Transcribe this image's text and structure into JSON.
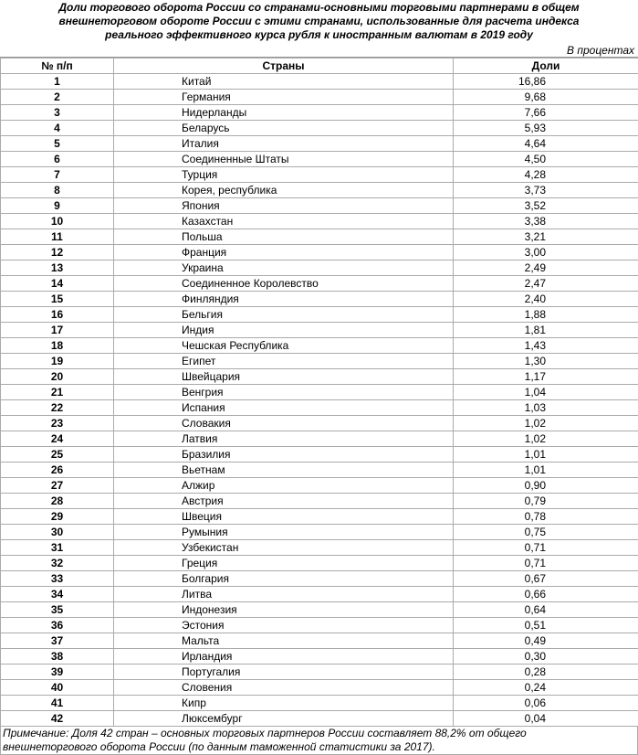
{
  "title": [
    "Доли торгового оборота России со странами-основными торговыми партнерами в общем",
    "внешнеторговом обороте России с этими странами, использованные для расчета индекса",
    "реального эффективного курса рубля к иностранным валютам в 2019 году"
  ],
  "units": "В процентах",
  "table": {
    "header": [
      "№ п/п",
      "Страны",
      "Доли"
    ],
    "rows": [
      [
        "1",
        "Китай",
        "16,86"
      ],
      [
        "2",
        "Германия",
        "9,68"
      ],
      [
        "3",
        "Нидерланды",
        "7,66"
      ],
      [
        "4",
        "Беларусь",
        "5,93"
      ],
      [
        "5",
        "Италия",
        "4,64"
      ],
      [
        "6",
        "Соединенные Штаты",
        "4,50"
      ],
      [
        "7",
        "Турция",
        "4,28"
      ],
      [
        "8",
        "Корея, республика",
        "3,73"
      ],
      [
        "9",
        "Япония",
        "3,52"
      ],
      [
        "10",
        "Казахстан",
        "3,38"
      ],
      [
        "11",
        "Польша",
        "3,21"
      ],
      [
        "12",
        "Франция",
        "3,00"
      ],
      [
        "13",
        "Украина",
        "2,49"
      ],
      [
        "14",
        "Соединенное Королевство",
        "2,47"
      ],
      [
        "15",
        "Финляндия",
        "2,40"
      ],
      [
        "16",
        "Бельгия",
        "1,88"
      ],
      [
        "17",
        "Индия",
        "1,81"
      ],
      [
        "18",
        "Чешская Республика",
        "1,43"
      ],
      [
        "19",
        "Египет",
        "1,30"
      ],
      [
        "20",
        "Швейцария",
        "1,17"
      ],
      [
        "21",
        "Венгрия",
        "1,04"
      ],
      [
        "22",
        "Испания",
        "1,03"
      ],
      [
        "23",
        "Словакия",
        "1,02"
      ],
      [
        "24",
        "Латвия",
        "1,02"
      ],
      [
        "25",
        "Бразилия",
        "1,01"
      ],
      [
        "26",
        "Вьетнам",
        "1,01"
      ],
      [
        "27",
        "Алжир",
        "0,90"
      ],
      [
        "28",
        "Австрия",
        "0,79"
      ],
      [
        "29",
        "Швеция",
        "0,78"
      ],
      [
        "30",
        "Румыния",
        "0,75"
      ],
      [
        "31",
        "Узбекистан",
        "0,71"
      ],
      [
        "32",
        "Греция",
        "0,71"
      ],
      [
        "33",
        "Болгария",
        "0,67"
      ],
      [
        "34",
        "Литва",
        "0,66"
      ],
      [
        "35",
        "Индонезия",
        "0,64"
      ],
      [
        "36",
        "Эстония",
        "0,51"
      ],
      [
        "37",
        "Мальта",
        "0,49"
      ],
      [
        "38",
        "Ирландия",
        "0,30"
      ],
      [
        "39",
        "Португалия",
        "0,28"
      ],
      [
        "40",
        "Словения",
        "0,24"
      ],
      [
        "41",
        "Кипр",
        "0,06"
      ],
      [
        "42",
        "Люксембург",
        "0,04"
      ]
    ]
  },
  "note": [
    "Примечание: Доля 42 стран – основных торговых партнеров России составляет 88,2% от общего",
    "внешнеторгового оборота России (по данным таможенной статистики за 2017)."
  ]
}
